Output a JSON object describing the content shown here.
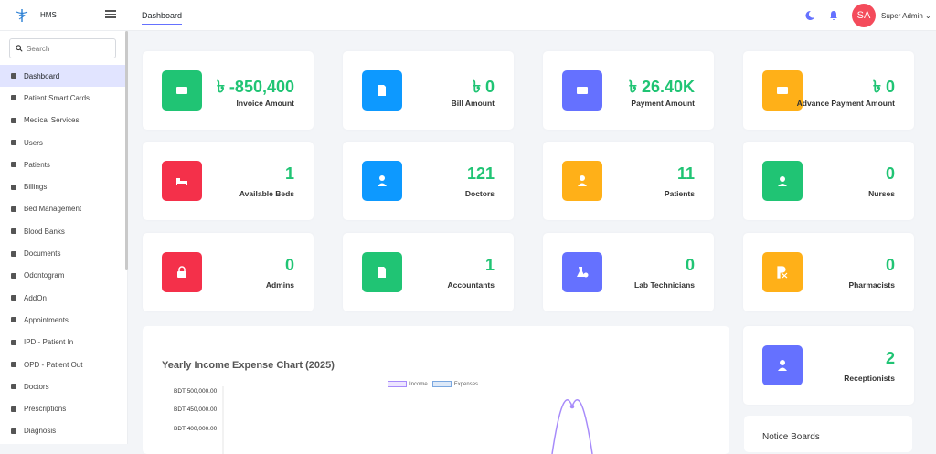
{
  "app": {
    "name": "HMS"
  },
  "header": {
    "tab": "Dashboard",
    "avatar_initials": "SA",
    "user_name": "Super Admin"
  },
  "sidebar": {
    "search_placeholder": "Search",
    "items": [
      {
        "label": "Dashboard",
        "icon": "dashboard-icon"
      },
      {
        "label": "Patient Smart Cards",
        "icon": "id-card-icon"
      },
      {
        "label": "Medical Services",
        "icon": "services-icon"
      },
      {
        "label": "Users",
        "icon": "users-icon"
      },
      {
        "label": "Patients",
        "icon": "user-icon"
      },
      {
        "label": "Billings",
        "icon": "file-icon"
      },
      {
        "label": "Bed Management",
        "icon": "bed-icon"
      },
      {
        "label": "Blood Banks",
        "icon": "drop-icon"
      },
      {
        "label": "Documents",
        "icon": "document-icon"
      },
      {
        "label": "Odontogram",
        "icon": "tooth-icon"
      },
      {
        "label": "AddOn",
        "icon": "user-add-icon"
      },
      {
        "label": "Appointments",
        "icon": "calendar-icon"
      },
      {
        "label": "IPD - Patient In",
        "icon": "ipd-icon"
      },
      {
        "label": "OPD - Patient Out",
        "icon": "stethoscope-icon"
      },
      {
        "label": "Doctors",
        "icon": "doctor-icon"
      },
      {
        "label": "Prescriptions",
        "icon": "prescription-icon"
      },
      {
        "label": "Diagnosis",
        "icon": "diagnosis-icon"
      }
    ]
  },
  "stats": [
    {
      "value": "৳ -850,400",
      "label": "Invoice Amount",
      "color": "#20c474",
      "icon": "money-icon"
    },
    {
      "value": "৳ 0",
      "label": "Bill Amount",
      "color": "#0d99ff",
      "icon": "bill-icon"
    },
    {
      "value": "৳ 26.40K",
      "label": "Payment Amount",
      "color": "#6571ff",
      "icon": "cash-icon"
    },
    {
      "value": "৳ 0",
      "label": "Advance Payment Amount",
      "color": "#ffb018",
      "icon": "advance-icon"
    },
    {
      "value": "1",
      "label": "Available Beds",
      "color": "#f4304a",
      "icon": "bed-icon"
    },
    {
      "value": "121",
      "label": "Doctors",
      "color": "#0d99ff",
      "icon": "doctor-icon"
    },
    {
      "value": "11",
      "label": "Patients",
      "color": "#ffb018",
      "icon": "patient-icon"
    },
    {
      "value": "0",
      "label": "Nurses",
      "color": "#20c474",
      "icon": "nurse-icon"
    },
    {
      "value": "0",
      "label": "Admins",
      "color": "#f4304a",
      "icon": "lock-icon"
    },
    {
      "value": "1",
      "label": "Accountants",
      "color": "#20c474",
      "icon": "accountant-icon"
    },
    {
      "value": "0",
      "label": "Lab Technicians",
      "color": "#6571ff",
      "icon": "lab-icon"
    },
    {
      "value": "0",
      "label": "Pharmacists",
      "color": "#ffb018",
      "icon": "rx-icon"
    },
    {
      "value": "2",
      "label": "Receptionists",
      "color": "#6571ff",
      "icon": "receptionist-icon"
    }
  ],
  "chart_data": {
    "type": "line",
    "title": "Yearly Income Expense Chart (2025)",
    "series": [
      {
        "name": "Income",
        "color": "#a78bfa"
      },
      {
        "name": "Expenses",
        "color": "#7aa7e0"
      }
    ],
    "yticks": [
      "BDT 500,000.00",
      "BDT 450,000.00",
      "BDT 400,000.00"
    ]
  },
  "notice": {
    "title": "Notice Boards"
  }
}
